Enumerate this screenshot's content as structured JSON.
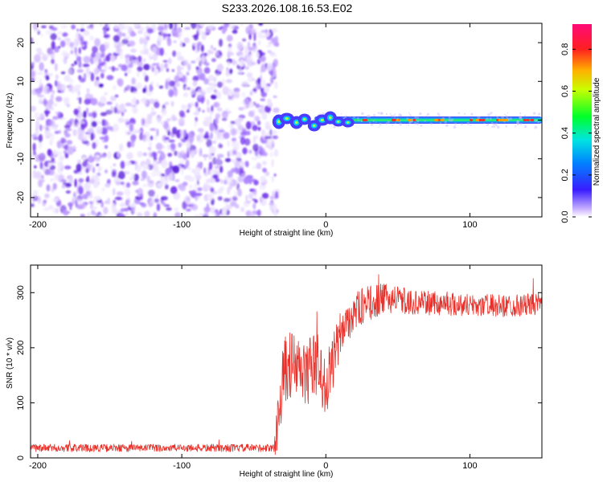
{
  "title": "S233.2026.108.16.53.E02",
  "chart_data": [
    {
      "type": "heatmap",
      "name": "spectrogram",
      "xlabel": "Height of straight line (km)",
      "ylabel": "Frequency (Hz)",
      "xlim": [
        -205,
        150
      ],
      "ylim": [
        -25,
        25
      ],
      "xticks": [
        -200,
        -100,
        0,
        100
      ],
      "yticks": [
        -20,
        -10,
        0,
        10,
        20
      ],
      "noise_region_x": [
        -205,
        -36
      ],
      "signal_band_center_hz": 0,
      "colorbar": {
        "label": "Normalized spectral amplitude",
        "range": [
          0,
          0.92
        ],
        "ticks": [
          0.0,
          0.2,
          0.4,
          0.6,
          0.8
        ]
      }
    },
    {
      "type": "line",
      "name": "snr",
      "xlabel": "Height of straight line (km)",
      "ylabel": "SNR (10 * v/v)",
      "xlim": [
        -205,
        150
      ],
      "ylim": [
        0,
        350
      ],
      "xticks": [
        -200,
        -100,
        0,
        100
      ],
      "yticks": [
        0,
        100,
        200,
        300
      ],
      "series_color": "#e8312a",
      "profile": {
        "x": [
          -205,
          -36,
          -35,
          -32,
          -28,
          -25,
          -20,
          -15,
          -10,
          -5,
          0,
          3,
          8,
          12,
          18,
          25,
          35,
          45,
          60,
          80,
          100,
          120,
          140,
          150
        ],
        "y": [
          18,
          18,
          25,
          110,
          160,
          170,
          160,
          150,
          165,
          170,
          120,
          160,
          200,
          240,
          260,
          275,
          285,
          290,
          282,
          280,
          278,
          276,
          278,
          280
        ]
      },
      "noise_amplitude": {
        "x": [
          -205,
          -36,
          -33,
          -20,
          0,
          20,
          60,
          150
        ],
        "y": [
          7,
          7,
          60,
          65,
          55,
          35,
          22,
          20
        ]
      }
    }
  ]
}
